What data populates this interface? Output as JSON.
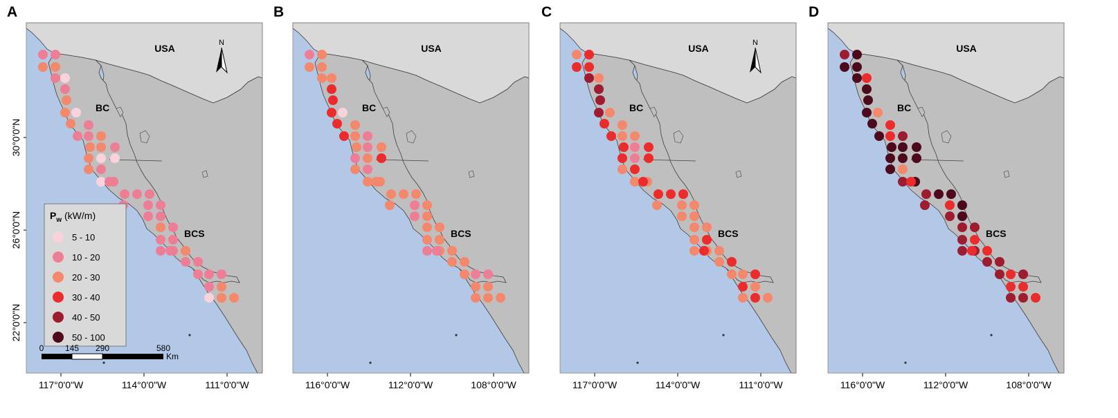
{
  "figure": {
    "panels": [
      {
        "letter": "A",
        "country_label": "USA",
        "region_labels": [
          "BC",
          "BCS"
        ],
        "north_arrow": true,
        "north_label": "N",
        "y_tick_labels": [
          "30°0'0\"N",
          "26°0'0\"N",
          "22°0'0\"N"
        ],
        "x_tick_labels": [
          "117°0'0\"W",
          "114°0'0\"W",
          "111°0'0\"W"
        ],
        "legend": true,
        "scale_bar": true,
        "dot_classes": "1122112221112222010210111111121111121111121022111100"
      },
      {
        "letter": "B",
        "country_label": "USA",
        "region_labels": [
          "BC",
          "BCS"
        ],
        "north_arrow": false,
        "y_tick_labels": [],
        "x_tick_labels": [
          "116°0'0\"W",
          "112°0'0\"W",
          "108°0'0\"W"
        ],
        "legend": false,
        "scale_bar": false,
        "dot_classes": "1222233333222111223212222212222221222221221222112202"
      },
      {
        "letter": "C",
        "country_label": "USA",
        "region_labels": [
          "BC",
          "BCS"
        ],
        "north_arrow": true,
        "north_label": "N",
        "y_tick_labels": [],
        "x_tick_labels": [
          "117°0'0\"W",
          "114°0'0\"W",
          "111°0'0\"W"
        ],
        "legend": false,
        "scale_bar": false,
        "dot_classes": "2333444433223321133232233322222232222322323232322322"
      },
      {
        "letter": "D",
        "country_label": "USA",
        "region_labels": [
          "BC",
          "BCS"
        ],
        "north_arrow": false,
        "y_tick_labels": [],
        "x_tick_labels": [
          "116°0'0\"W",
          "112°0'0\"W",
          "108°0'0\"W"
        ],
        "legend": false,
        "scale_bar": false,
        "dot_classes": "4555555555335545555524545535544434434443334443344323"
      }
    ],
    "legend": {
      "title_symbol": "P",
      "title_subscript": "w",
      "title_units": " (kW/m)",
      "classes": [
        {
          "label": "5 - 10",
          "color": "#f9d3dc"
        },
        {
          "label": "10 - 20",
          "color": "#ee7e95"
        },
        {
          "label": "20 - 30",
          "color": "#f4886c"
        },
        {
          "label": "30 - 40",
          "color": "#ec2c2c"
        },
        {
          "label": "40 - 50",
          "color": "#9e1c30"
        },
        {
          "label": "50 - 100",
          "color": "#4c0a1c"
        }
      ]
    },
    "scale_bar": {
      "ticks": [
        "0",
        "145",
        "290",
        "580"
      ],
      "unit": "Km"
    },
    "colors": {
      "ocean": "#b3c8e6",
      "land": "#bfbfbf",
      "usa": "#d9d9d9",
      "outline": "#3d3d3d"
    }
  }
}
